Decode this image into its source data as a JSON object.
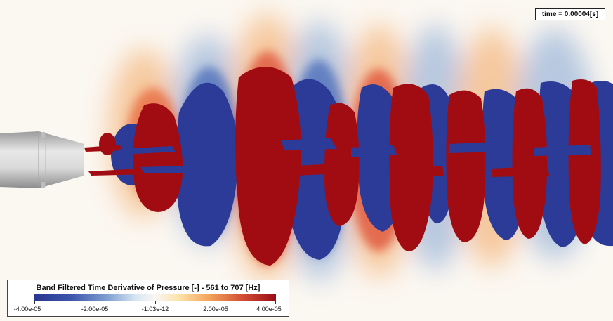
{
  "time_label": "time = 0.00004[s]",
  "legend": {
    "title": "Band Filtered Time Derivative of Pressure [-] - 561 to 707 [Hz]",
    "ticks": [
      "-4.00e-05",
      "-2.00e-05",
      "-1.03e-12",
      "2.00e-05",
      "4.00e-05"
    ]
  },
  "colors": {
    "negative": "#2c3b97",
    "positive": "#a10c12",
    "neutral": "#fbf7f1",
    "nozzle": "#cfcfcf"
  }
}
